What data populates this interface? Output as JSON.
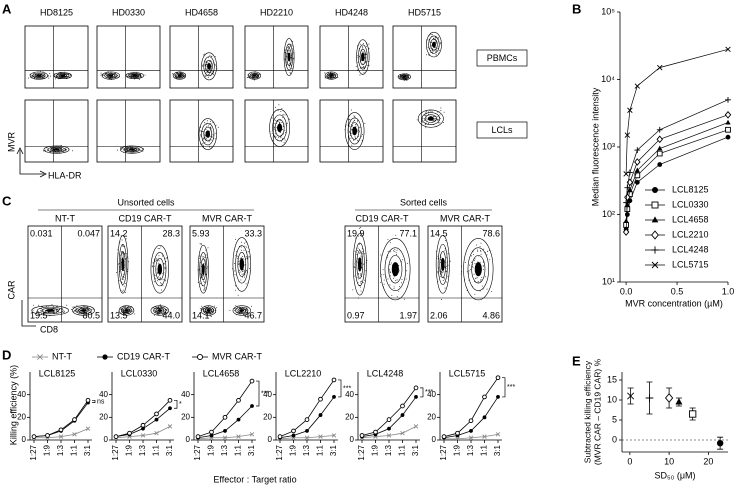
{
  "panel_a": {
    "letter": "A",
    "samples": [
      "HD8125",
      "HD0330",
      "HD4658",
      "HD2210",
      "HD4248",
      "HD5715"
    ],
    "rows": [
      "PBMCs",
      "LCLs"
    ],
    "y_axis": "MVR",
    "x_axis": "HLA-DR"
  },
  "panel_c": {
    "letter": "C",
    "y_axis": "CAR",
    "x_axis": "CD8",
    "groups": [
      {
        "label": "Unsorted cells",
        "plots": [
          {
            "title": "NT-T",
            "quadrants": [
              "0.031",
              "0.047",
              "19.5",
              "80.5"
            ]
          },
          {
            "title": "CD19 CAR-T",
            "quadrants": [
              "14.2",
              "28.3",
              "13.5",
              "44.0"
            ]
          },
          {
            "title": "MVR CAR-T",
            "quadrants": [
              "5.93",
              "33.3",
              "14.1",
              "46.7"
            ]
          }
        ]
      },
      {
        "label": "Sorted cells",
        "plots": [
          {
            "title": "CD19 CAR-T",
            "quadrants": [
              "19.9",
              "77.1",
              "0.97",
              "1.97"
            ]
          },
          {
            "title": "MVR CAR-T",
            "quadrants": [
              "14.5",
              "78.6",
              "2.06",
              "4.86"
            ]
          }
        ]
      }
    ]
  },
  "chart_data": [
    {
      "type": "line",
      "panel": "B",
      "ylabel": "Median fluorescence intensity",
      "xlabel": "MVR concentration (µM)",
      "x": [
        0,
        0.012,
        0.037,
        0.11,
        0.33,
        1
      ],
      "xlim": [
        -0.06,
        1.0
      ],
      "xticks": [
        {
          "value": 0,
          "label": "0.0"
        },
        {
          "value": 0.5,
          "label": "0.5"
        },
        {
          "value": 1,
          "label": "1.0"
        }
      ],
      "ylim": [
        10,
        100000
      ],
      "ylog": true,
      "yticks": [
        {
          "value": 10,
          "label": "10¹"
        },
        {
          "value": 100,
          "label": "10²"
        },
        {
          "value": 1000,
          "label": "10³"
        },
        {
          "value": 10000,
          "label": "10⁴"
        },
        {
          "value": 100000,
          "label": "10⁵"
        }
      ],
      "series": [
        {
          "name": "LCL8125",
          "color": "#000000",
          "marker": "circle",
          "values": [
            60,
            100,
            160,
            300,
            550,
            1400
          ]
        },
        {
          "name": "LCL0330",
          "color": "#000000",
          "marker": "square",
          "values": [
            70,
            120,
            200,
            380,
            800,
            1800
          ]
        },
        {
          "name": "LCL4658",
          "color": "#000000",
          "marker": "triangle",
          "values": [
            80,
            140,
            230,
            450,
            950,
            2300
          ]
        },
        {
          "name": "LCL2210",
          "color": "#000000",
          "marker": "diamond",
          "values": [
            55,
            180,
            300,
            600,
            1300,
            3000
          ]
        },
        {
          "name": "LCL4248",
          "color": "#000000",
          "marker": "plus",
          "values": [
            150,
            250,
            420,
            900,
            1800,
            5000
          ]
        },
        {
          "name": "LCL5715",
          "color": "#000000",
          "marker": "x",
          "values": [
            400,
            1500,
            3500,
            8000,
            15000,
            28000
          ]
        }
      ]
    },
    {
      "type": "line",
      "panel": "D",
      "ylabel": "Killing efficiency (%)",
      "xlabel": "Effector : Target ratio",
      "categories": [
        "1:27",
        "1:9",
        "1:3",
        "1:1",
        "3:1"
      ],
      "ylim": [
        0,
        60
      ],
      "yticks": [
        0,
        20,
        40
      ],
      "series": [
        {
          "name": "NT-T",
          "color": "#888888",
          "marker": "x"
        },
        {
          "name": "CD19 CAR-T",
          "color": "#000000",
          "marker": "circle"
        },
        {
          "name": "MVR CAR-T",
          "color": "#000000",
          "marker": "open-circle"
        }
      ],
      "panels": [
        {
          "title": "LCL8125",
          "annotation": "ns",
          "values": [
            [
              2,
              2,
              3,
              5,
              10
            ],
            [
              3,
              4,
              8,
              17,
              33
            ],
            [
              3,
              4,
              9,
              18,
              35
            ]
          ]
        },
        {
          "title": "LCL0330",
          "annotation": "*",
          "values": [
            [
              2,
              3,
              4,
              6,
              12
            ],
            [
              3,
              5,
              10,
              18,
              28
            ],
            [
              3,
              6,
              13,
              23,
              35
            ]
          ]
        },
        {
          "title": "LCL4658",
          "annotation": "***",
          "values": [
            [
              1,
              2,
              2,
              3,
              5
            ],
            [
              2,
              4,
              8,
              18,
              30
            ],
            [
              3,
              7,
              20,
              35,
              52
            ]
          ]
        },
        {
          "title": "LCL2210",
          "annotation": "***",
          "values": [
            [
              1,
              2,
              2,
              3,
              4
            ],
            [
              2,
              4,
              8,
              22,
              38
            ],
            [
              3,
              8,
              18,
              36,
              53
            ]
          ]
        },
        {
          "title": "LCL4248",
          "annotation": "***",
          "values": [
            [
              2,
              3,
              4,
              6,
              12
            ],
            [
              3,
              5,
              10,
              22,
              38
            ],
            [
              4,
              7,
              18,
              30,
              46
            ]
          ]
        },
        {
          "title": "LCL5715",
          "annotation": "***",
          "values": [
            [
              1,
              1,
              2,
              3,
              5
            ],
            [
              2,
              4,
              8,
              20,
              38
            ],
            [
              3,
              6,
              17,
              38,
              55
            ]
          ]
        }
      ]
    },
    {
      "type": "scatter",
      "panel": "E",
      "ylabel": [
        "Subtracted killing efficiency",
        "(MVR CAR – CD19 CAR) %"
      ],
      "xlabel": "SD₅₀ (μM)",
      "x": [
        0.2,
        5,
        10,
        12.5,
        16,
        23
      ],
      "values": [
        11,
        10.5,
        10.5,
        9.5,
        6.5,
        -0.8
      ],
      "errors": [
        2,
        4,
        2.5,
        1,
        1.5,
        1.5
      ],
      "markers": [
        "x",
        "plus",
        "diamond",
        "triangle",
        "square",
        "circle"
      ],
      "color": "#000000",
      "xlim": [
        -2,
        25
      ],
      "xticks": [
        0,
        10,
        20
      ],
      "ylim": [
        -3,
        17
      ],
      "yticks": [
        0,
        5,
        10,
        15
      ],
      "hline": 0
    }
  ]
}
